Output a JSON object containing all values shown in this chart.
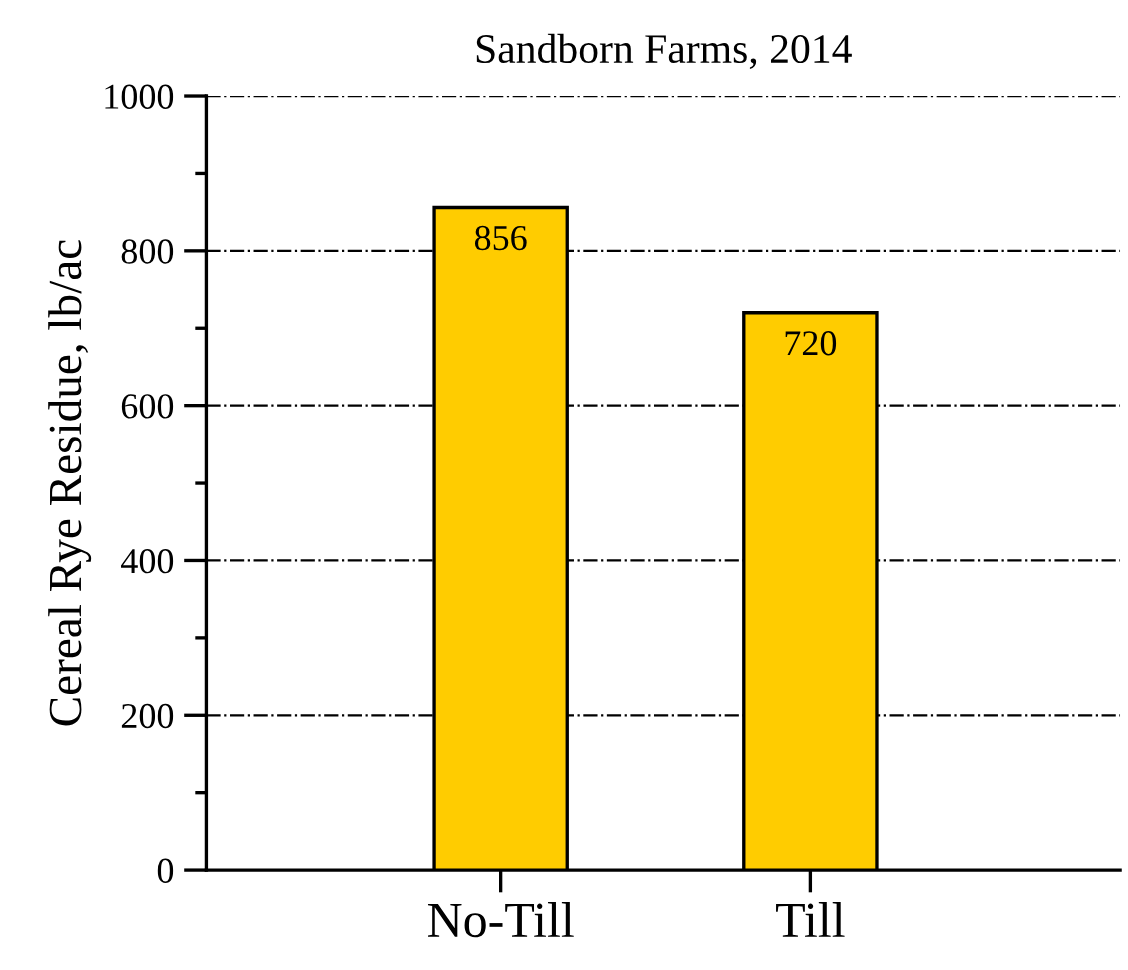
{
  "chart_data": {
    "type": "bar",
    "title": "Sandborn Farms, 2014",
    "ylabel": "Cereal Rye Residue, lb/ac",
    "categories": [
      "No-Till",
      "Till"
    ],
    "values": [
      856,
      720
    ],
    "color": "#ffcc00",
    "ylim": [
      0,
      1000
    ],
    "yticks": [
      0,
      200,
      400,
      600,
      800,
      1000
    ],
    "grid": "y",
    "data_labels": true,
    "legend": false
  }
}
